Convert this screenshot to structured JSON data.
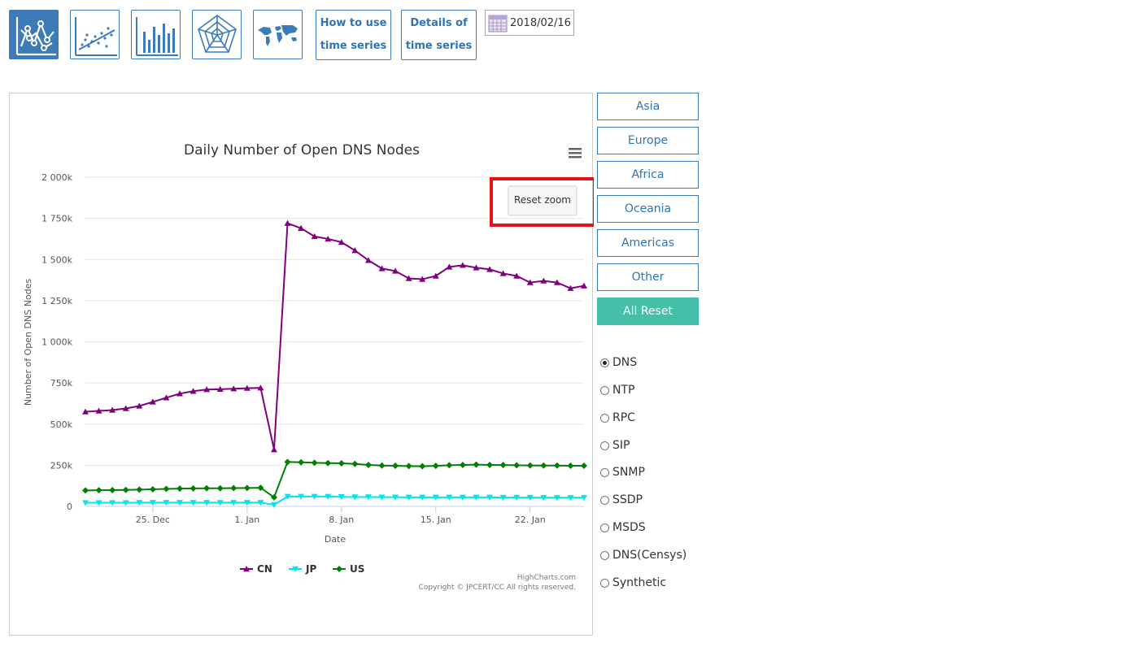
{
  "toolbar": {
    "icons": [
      "line-chart-icon",
      "scatter-chart-icon",
      "bar-chart-icon",
      "radar-chart-icon",
      "world-map-icon"
    ],
    "how_to_use": [
      "How to use",
      "time series"
    ],
    "details": [
      "Details of",
      "time series"
    ],
    "date": "2018/02/16"
  },
  "chart": {
    "title": "Daily Number of Open DNS Nodes",
    "reset_zoom": "Reset zoom",
    "credit": "HighCharts.com",
    "copyright": "Copyright © JPCERT/CC All rights reserved.",
    "highlight_color": "#e3131b"
  },
  "chart_data": {
    "type": "line",
    "title": "Daily Number of Open DNS Nodes",
    "xlabel": "Date",
    "ylabel": "Number of Open DNS Nodes",
    "ylim": [
      0,
      2000000
    ],
    "yticks": [
      "0",
      "250k",
      "500k",
      "750k",
      "1 000k",
      "1 250k",
      "1 500k",
      "1 750k",
      "2 000k"
    ],
    "xticks": [
      "25. Dec",
      "1. Jan",
      "8. Jan",
      "15. Jan",
      "22. Jan"
    ],
    "x": [
      "2017-12-20",
      "2017-12-21",
      "2017-12-22",
      "2017-12-23",
      "2017-12-24",
      "2017-12-25",
      "2017-12-26",
      "2017-12-27",
      "2017-12-28",
      "2017-12-29",
      "2017-12-30",
      "2017-12-31",
      "2018-01-01",
      "2018-01-02",
      "2018-01-03",
      "2018-01-04",
      "2018-01-05",
      "2018-01-06",
      "2018-01-07",
      "2018-01-08",
      "2018-01-09",
      "2018-01-10",
      "2018-01-11",
      "2018-01-12",
      "2018-01-13",
      "2018-01-14",
      "2018-01-15",
      "2018-01-16",
      "2018-01-17",
      "2018-01-18",
      "2018-01-19",
      "2018-01-20",
      "2018-01-21",
      "2018-01-22",
      "2018-01-23",
      "2018-01-24",
      "2018-01-25",
      "2018-01-26"
    ],
    "grid": true,
    "legend": "bottom-center",
    "series": [
      {
        "name": "CN",
        "color": "#800080",
        "marker": "triangle-up",
        "values": [
          575000,
          580000,
          585000,
          595000,
          610000,
          635000,
          660000,
          685000,
          700000,
          710000,
          712000,
          715000,
          718000,
          720000,
          345000,
          1720000,
          1690000,
          1640000,
          1625000,
          1605000,
          1555000,
          1495000,
          1445000,
          1430000,
          1385000,
          1380000,
          1400000,
          1455000,
          1465000,
          1450000,
          1440000,
          1415000,
          1400000,
          1360000,
          1370000,
          1360000,
          1325000,
          1340000
        ]
      },
      {
        "name": "JP",
        "color": "#00e5ee",
        "marker": "triangle-down",
        "values": [
          22000,
          22000,
          22000,
          22000,
          23000,
          23000,
          23000,
          23000,
          23000,
          23000,
          23000,
          23000,
          23000,
          23000,
          10000,
          60000,
          60000,
          60000,
          60000,
          58000,
          57000,
          57000,
          56000,
          56000,
          55000,
          55000,
          55000,
          55000,
          55000,
          55000,
          55000,
          54000,
          54000,
          54000,
          53000,
          53000,
          53000,
          53000
        ]
      },
      {
        "name": "US",
        "color": "#008000",
        "marker": "diamond",
        "values": [
          97000,
          98000,
          99000,
          100000,
          102000,
          104000,
          106000,
          108000,
          109000,
          110000,
          110000,
          111000,
          112000,
          113000,
          55000,
          270000,
          268000,
          265000,
          263000,
          262000,
          258000,
          252000,
          248000,
          247000,
          245000,
          244000,
          246000,
          250000,
          252000,
          254000,
          252000,
          251000,
          250000,
          249000,
          248000,
          248000,
          247000,
          247000
        ]
      }
    ]
  },
  "regions": [
    "Asia",
    "Europe",
    "Africa",
    "Oceania",
    "Americas",
    "Other"
  ],
  "all_reset": "All Reset",
  "protocols": {
    "selected": "DNS",
    "items": [
      "DNS",
      "NTP",
      "RPC",
      "SIP",
      "SNMP",
      "SSDP",
      "MSDS",
      "DNS(Censys)",
      "Synthetic"
    ]
  }
}
